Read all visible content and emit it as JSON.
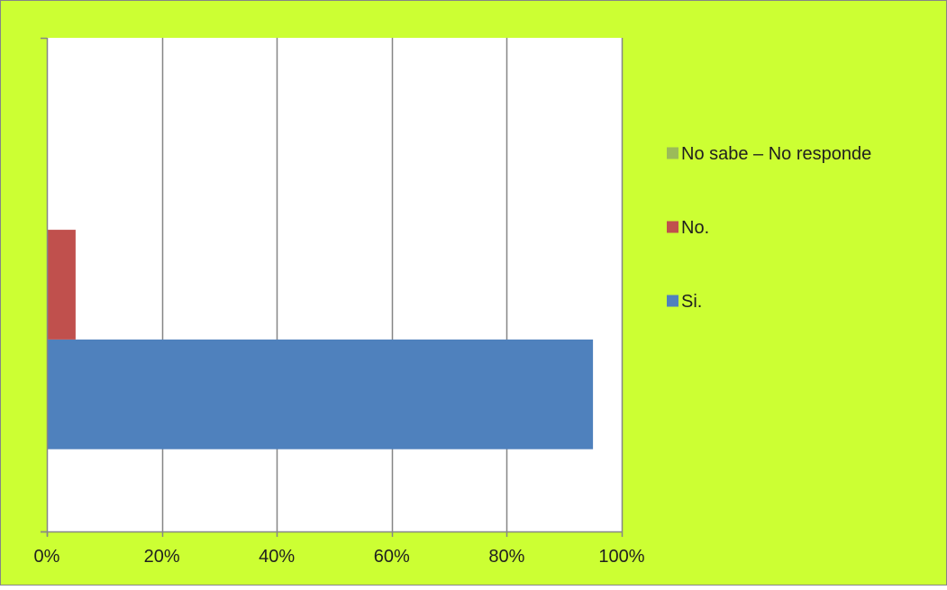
{
  "colors": {
    "chart_background": "#CCFF33",
    "plot_background": "#FFFFFF",
    "gridline": "#868686",
    "axis": "#868686",
    "text": "#1F1F1F"
  },
  "chart_data": {
    "type": "bar",
    "orientation": "horizontal",
    "stacked": false,
    "title": "",
    "xlabel": "",
    "ylabel": "",
    "xlim": [
      0,
      100
    ],
    "x_unit": "%",
    "x_ticks": [
      {
        "value": 0,
        "label": "0%"
      },
      {
        "value": 20,
        "label": "20%"
      },
      {
        "value": 40,
        "label": "40%"
      },
      {
        "value": 60,
        "label": "60%"
      },
      {
        "value": 80,
        "label": "80%"
      },
      {
        "value": 100,
        "label": "100%"
      }
    ],
    "grid": true,
    "legend_position": "right",
    "categories": [
      ""
    ],
    "series": [
      {
        "name": "Si.",
        "color": "#4F81BD",
        "values": [
          95
        ]
      },
      {
        "name": "No.",
        "color": "#C0504D",
        "values": [
          5
        ]
      },
      {
        "name": "No sabe – No responde",
        "color": "#9BBB59",
        "values": [
          0
        ]
      }
    ],
    "legend_order": [
      "No sabe – No responde",
      "No.",
      "Si."
    ]
  }
}
